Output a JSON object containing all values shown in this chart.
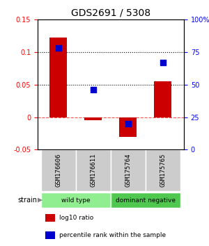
{
  "title": "GDS2691 / 5308",
  "samples": [
    "GSM176606",
    "GSM176611",
    "GSM175764",
    "GSM175765"
  ],
  "log10_ratio": [
    0.123,
    -0.005,
    -0.03,
    0.055
  ],
  "percentile_rank": [
    0.78,
    0.46,
    0.2,
    0.67
  ],
  "bar_color": "#cc0000",
  "dot_color": "#0000cc",
  "ylim_left": [
    -0.05,
    0.15
  ],
  "ylim_right": [
    0.0,
    1.0
  ],
  "yticks_left": [
    -0.05,
    0.0,
    0.05,
    0.1,
    0.15
  ],
  "yticks_right": [
    0.0,
    0.25,
    0.5,
    0.75,
    1.0
  ],
  "ytick_labels_left": [
    "-0.05",
    "0",
    "0.05",
    "0.1",
    "0.15"
  ],
  "ytick_labels_right": [
    "0",
    "25",
    "50",
    "75",
    "100%"
  ],
  "hlines": [
    0.05,
    0.1
  ],
  "zero_line": 0.0,
  "groups": [
    {
      "label": "wild type",
      "samples": [
        0,
        1
      ],
      "color": "#90ee90"
    },
    {
      "label": "dominant negative",
      "samples": [
        2,
        3
      ],
      "color": "#50c850"
    }
  ],
  "sample_box_color": "#cccccc",
  "legend_items": [
    {
      "color": "#cc0000",
      "label": "log10 ratio"
    },
    {
      "color": "#0000cc",
      "label": "percentile rank within the sample"
    }
  ]
}
